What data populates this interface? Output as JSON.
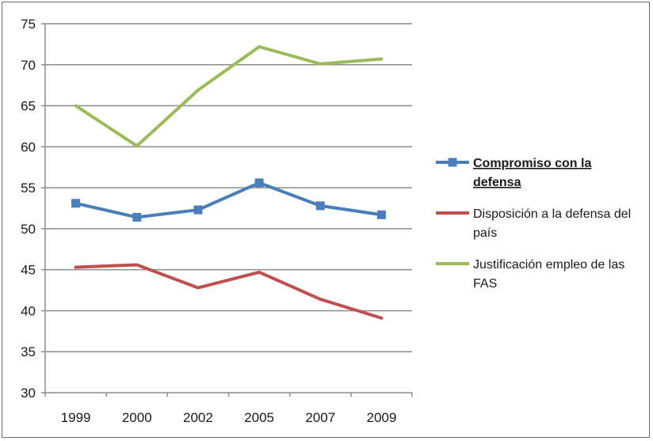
{
  "chart_data": {
    "type": "line",
    "categories": [
      "1999",
      "2000",
      "2002",
      "2005",
      "2007",
      "2009"
    ],
    "ylim": [
      30,
      75
    ],
    "yticks": [
      30,
      35,
      40,
      45,
      50,
      55,
      60,
      65,
      70,
      75
    ],
    "grid": true,
    "legend_position": "right",
    "series": [
      {
        "name": "Compromiso con la defensa",
        "name_lines": [
          "Compromiso con la",
          "defensa"
        ],
        "color": "#4a7ebb",
        "marker": "square",
        "values": [
          53.1,
          51.4,
          52.3,
          55.6,
          52.8,
          51.7
        ]
      },
      {
        "name": "Disposición a la defensa del país",
        "name_lines": [
          "Disposición a la defensa del",
          "país"
        ],
        "color": "#c0504d",
        "marker": "none",
        "values": [
          45.3,
          45.6,
          42.8,
          44.7,
          41.4,
          39.1
        ]
      },
      {
        "name": "Justificación empleo de las FAS",
        "name_lines": [
          "Justificación empleo de las",
          "FAS"
        ],
        "color": "#9bbb59",
        "marker": "none",
        "values": [
          65.0,
          60.1,
          66.9,
          72.2,
          70.1,
          70.7
        ]
      }
    ]
  }
}
